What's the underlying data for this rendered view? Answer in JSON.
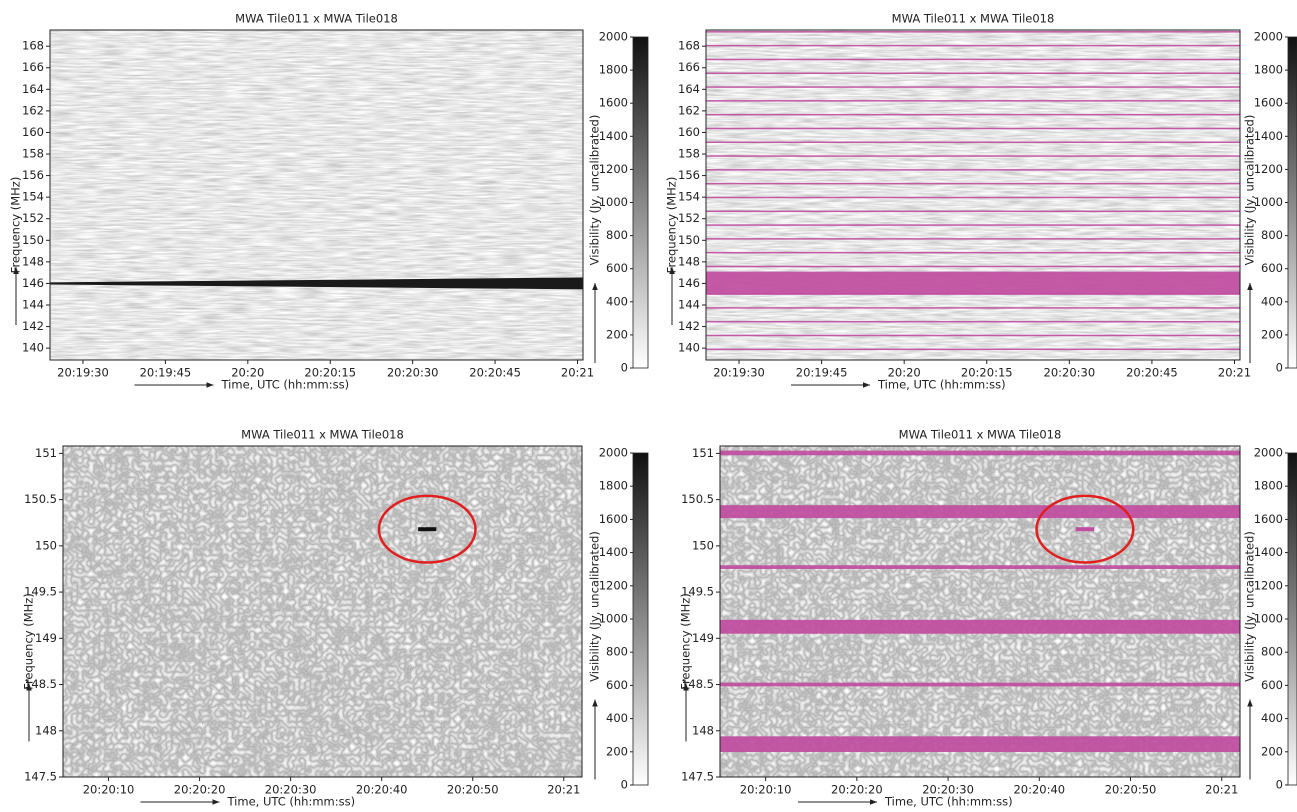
{
  "chart_data": [
    {
      "type": "heatmap",
      "title": "MWA Tile011 x MWA Tile018",
      "x_label": "Time, UTC (hh:mm:ss)",
      "y_label": "Frequency (MHz)",
      "colorbar_label": "Visibility (Jy, uncalibrated)",
      "xlim": [
        73164,
        73261
      ],
      "xticks": [
        {
          "value": 73170,
          "label": "20:19:30"
        },
        {
          "value": 73185,
          "label": "20:19:45"
        },
        {
          "value": 73200,
          "label": "20:20"
        },
        {
          "value": 73215,
          "label": "20:20:15"
        },
        {
          "value": 73230,
          "label": "20:20:30"
        },
        {
          "value": 73245,
          "label": "20:20:45"
        },
        {
          "value": 73260,
          "label": "20:21"
        }
      ],
      "ylim": [
        138.9,
        169.5
      ],
      "yticks": [
        140,
        142,
        144,
        146,
        148,
        150,
        152,
        154,
        156,
        158,
        160,
        162,
        164,
        166,
        168
      ],
      "clim": [
        0,
        2000
      ],
      "cticks": [
        0,
        200,
        400,
        600,
        800,
        1000,
        1200,
        1400,
        1600,
        1800,
        2000
      ],
      "signal": {
        "frequency": 146,
        "width": [
          0.2,
          1.1
        ],
        "color": "#1a1a1a"
      }
    },
    {
      "type": "heatmap",
      "title": "MWA Tile011 x MWA Tile018",
      "x_label": "Time, UTC (hh:mm:ss)",
      "y_label": "Frequency (MHz)",
      "colorbar_label": "Visibility (Jy, uncalibrated)",
      "xlim": [
        73164,
        73261
      ],
      "xticks": [
        {
          "value": 73170,
          "label": "20:19:30"
        },
        {
          "value": 73185,
          "label": "20:19:45"
        },
        {
          "value": 73200,
          "label": "20:20"
        },
        {
          "value": 73215,
          "label": "20:20:15"
        },
        {
          "value": 73230,
          "label": "20:20:30"
        },
        {
          "value": 73245,
          "label": "20:20:45"
        },
        {
          "value": 73260,
          "label": "20:21"
        }
      ],
      "ylim": [
        138.9,
        169.5
      ],
      "yticks": [
        140,
        142,
        144,
        146,
        148,
        150,
        152,
        154,
        156,
        158,
        160,
        162,
        164,
        166,
        168
      ],
      "clim": [
        0,
        2000
      ],
      "cticks": [
        0,
        200,
        400,
        600,
        800,
        1000,
        1200,
        1400,
        1600,
        1800,
        2000
      ],
      "flag_color": "#c04ca0",
      "flagged_bands": [
        [
          145.0,
          147.1
        ],
        [
          139.84,
          139.96
        ],
        [
          141.12,
          141.24
        ],
        [
          142.4,
          142.52
        ],
        [
          143.68,
          143.8
        ],
        [
          144.96,
          145.08
        ],
        [
          147.52,
          147.64
        ],
        [
          148.8,
          148.92
        ],
        [
          150.08,
          150.2
        ],
        [
          151.36,
          151.48
        ],
        [
          152.64,
          152.76
        ],
        [
          153.92,
          154.04
        ],
        [
          155.2,
          155.32
        ],
        [
          156.48,
          156.6
        ],
        [
          157.76,
          157.88
        ],
        [
          159.04,
          159.16
        ],
        [
          160.32,
          160.44
        ],
        [
          161.6,
          161.72
        ],
        [
          162.88,
          163.0
        ],
        [
          164.16,
          164.28
        ],
        [
          165.44,
          165.56
        ],
        [
          166.72,
          166.84
        ],
        [
          168.0,
          168.12
        ],
        [
          169.28,
          169.4
        ]
      ]
    },
    {
      "type": "heatmap",
      "title": "MWA Tile011 x MWA Tile018",
      "x_label": "Time, UTC (hh:mm:ss)",
      "y_label": "Frequency (MHz)",
      "colorbar_label": "Visibility (Jy, uncalibrated)",
      "xlim": [
        73205,
        73262
      ],
      "xticks": [
        {
          "value": 73210,
          "label": "20:20:10"
        },
        {
          "value": 73220,
          "label": "20:20:20"
        },
        {
          "value": 73230,
          "label": "20:20:30"
        },
        {
          "value": 73240,
          "label": "20:20:40"
        },
        {
          "value": 73250,
          "label": "20:20:50"
        },
        {
          "value": 73260,
          "label": "20:21"
        }
      ],
      "ylim": [
        147.5,
        151.08
      ],
      "yticks": [
        147.5,
        148,
        148.5,
        149,
        149.5,
        150,
        150.5,
        151
      ],
      "clim": [
        0,
        2000
      ],
      "cticks": [
        0,
        200,
        400,
        600,
        800,
        1000,
        1200,
        1400,
        1600,
        1800,
        2000
      ],
      "event": {
        "time": [
          73244,
          73246
        ],
        "frequency": 150.18,
        "color": "#111111"
      },
      "annotation": {
        "x": 73245,
        "y": 150.18,
        "rx": 5.3,
        "ry": 0.36,
        "color": "#e02020"
      }
    },
    {
      "type": "heatmap",
      "title": "MWA Tile011 x MWA Tile018",
      "x_label": "Time, UTC (hh:mm:ss)",
      "y_label": "Frequency (MHz)",
      "colorbar_label": "Visibility (Jy, uncalibrated)",
      "xlim": [
        73205,
        73262
      ],
      "xticks": [
        {
          "value": 73210,
          "label": "20:20:10"
        },
        {
          "value": 73220,
          "label": "20:20:20"
        },
        {
          "value": 73230,
          "label": "20:20:30"
        },
        {
          "value": 73240,
          "label": "20:20:40"
        },
        {
          "value": 73250,
          "label": "20:20:50"
        },
        {
          "value": 73260,
          "label": "20:21"
        }
      ],
      "ylim": [
        147.5,
        151.08
      ],
      "yticks": [
        147.5,
        148,
        148.5,
        149,
        149.5,
        150,
        150.5,
        151
      ],
      "clim": [
        0,
        2000
      ],
      "cticks": [
        0,
        200,
        400,
        600,
        800,
        1000,
        1200,
        1400,
        1600,
        1800,
        2000
      ],
      "flag_color": "#c04ca0",
      "flagged_bands": [
        [
          150.98,
          151.03
        ],
        [
          150.3,
          150.44
        ],
        [
          149.75,
          149.79
        ],
        [
          149.05,
          149.2
        ],
        [
          148.48,
          148.52
        ],
        [
          147.77,
          147.94
        ]
      ],
      "event": {
        "time": [
          73244,
          73246
        ],
        "frequency": 150.18,
        "color": "#c04ca0"
      },
      "annotation": {
        "x": 73245,
        "y": 150.18,
        "rx": 5.3,
        "ry": 0.36,
        "color": "#e02020"
      }
    }
  ]
}
